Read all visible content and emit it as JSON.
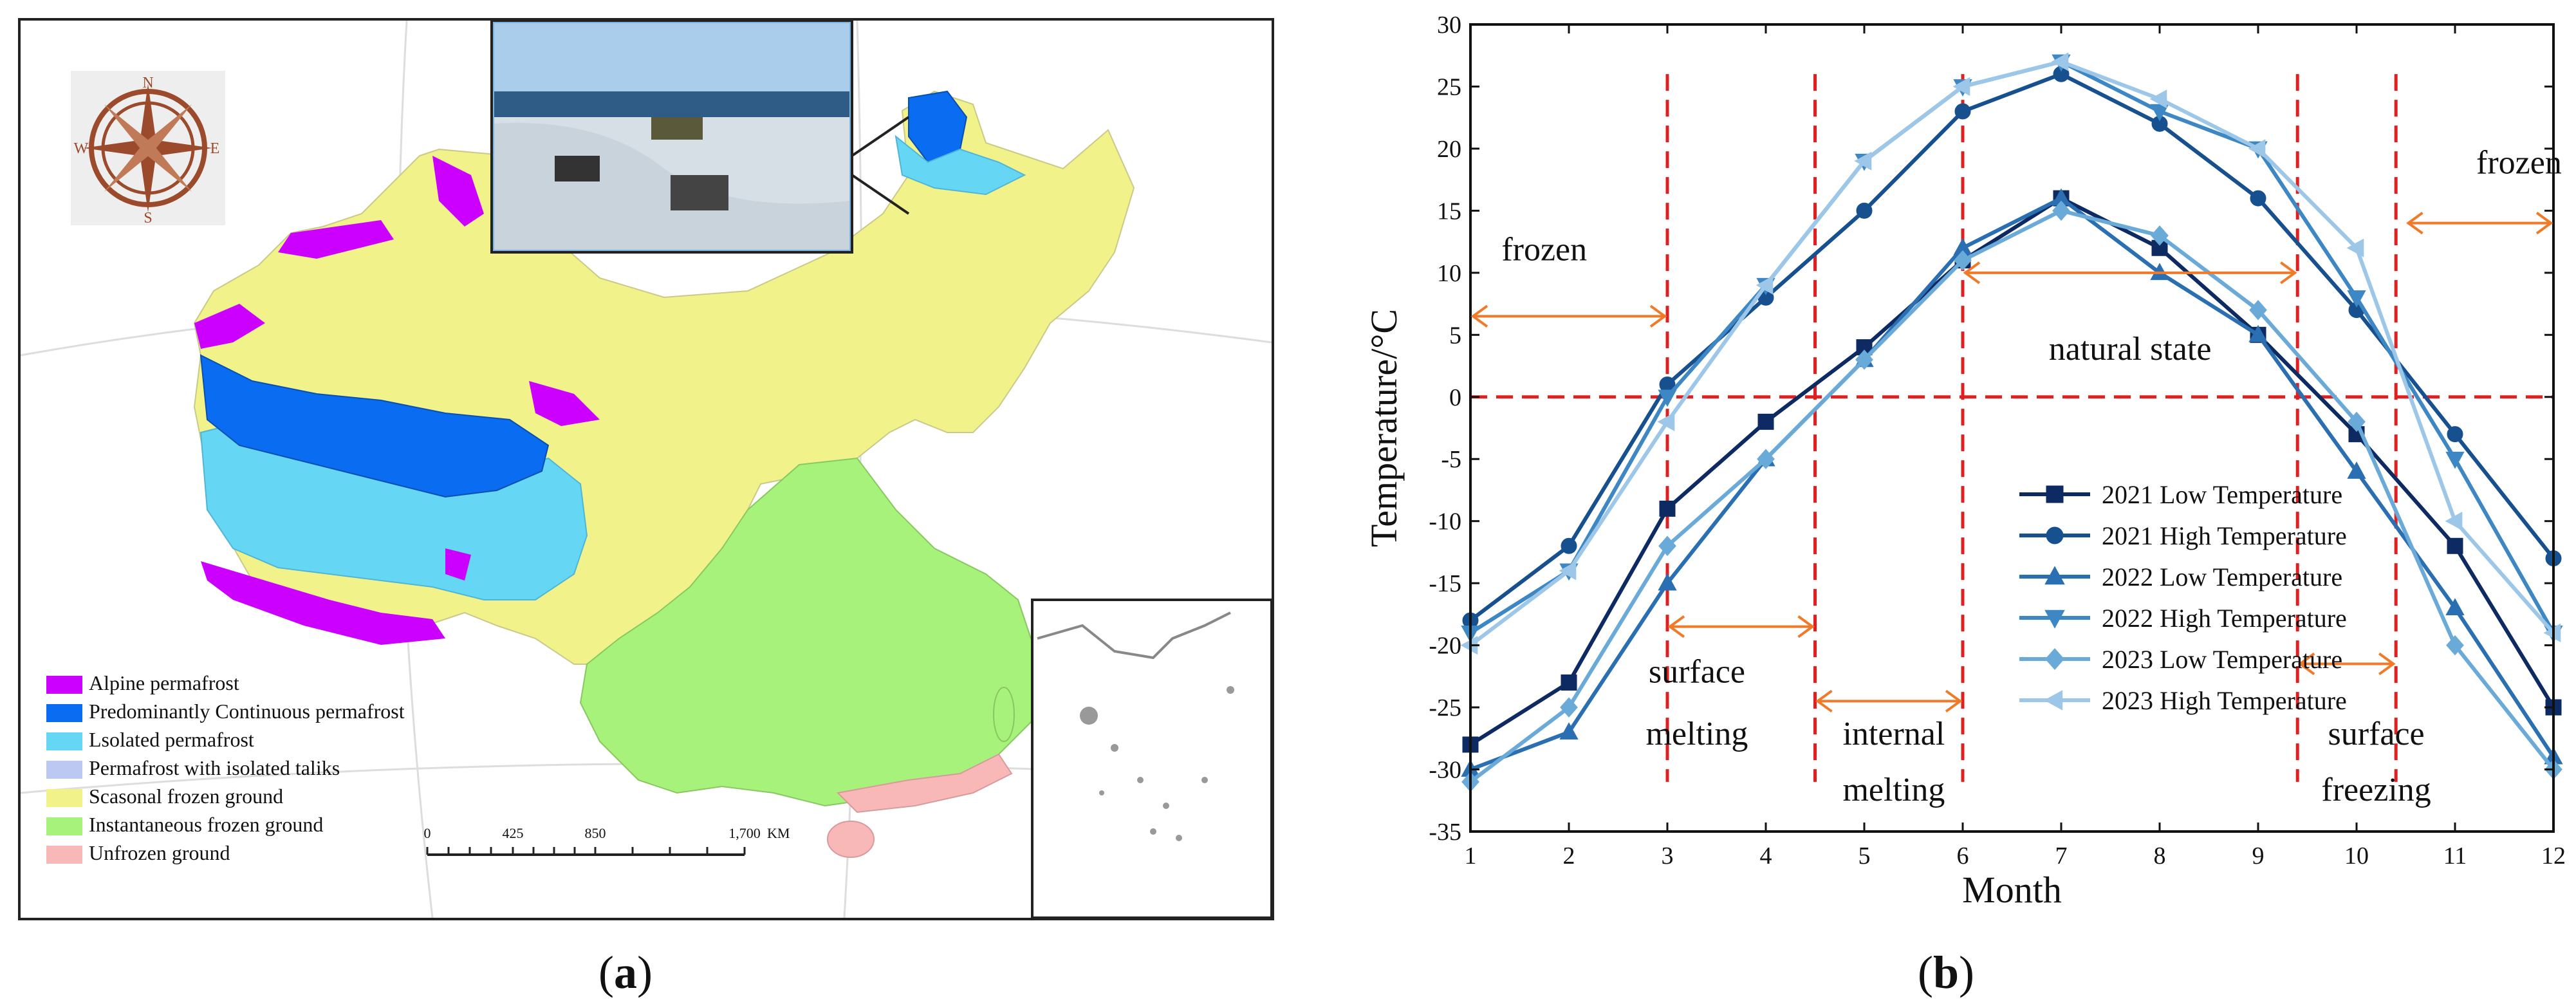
{
  "panel_a": {
    "caption_label": "a",
    "compass": {
      "N": "N",
      "S": "S",
      "E": "E",
      "W": "W"
    },
    "legend": [
      {
        "label": "Alpine permafrost",
        "color": "#cc00ff"
      },
      {
        "label": "Predominantly Continuous permafrost",
        "color": "#0a6cf0"
      },
      {
        "label": "Lsolated permafrost",
        "color": "#66d6f5"
      },
      {
        "label": "Permafrost with isolated taliks",
        "color": "#bcc8f2"
      },
      {
        "label": "Scasonal frozen ground",
        "color": "#f2f28a"
      },
      {
        "label": "Instantaneous frozen ground",
        "color": "#a6f27a"
      },
      {
        "label": "Unfrozen ground",
        "color": "#f8b8b8"
      }
    ],
    "scale_bar": {
      "ticks": [
        "0",
        "425",
        "850",
        "1,700"
      ],
      "unit": "KM"
    }
  },
  "panel_b": {
    "caption_label": "b",
    "chart_data": {
      "type": "line",
      "title": "",
      "xlabel": "Month",
      "ylabel": "Temperature/°C",
      "x": [
        1,
        2,
        3,
        4,
        5,
        6,
        7,
        8,
        9,
        10,
        11,
        12
      ],
      "xlim": [
        1,
        12
      ],
      "ylim": [
        -35,
        30
      ],
      "yticks": [
        -35,
        -30,
        -25,
        -20,
        -15,
        -10,
        -5,
        0,
        5,
        10,
        15,
        20,
        25,
        30
      ],
      "grid": false,
      "legend_position": "center",
      "series": [
        {
          "name": "2021 Low Temperature",
          "marker": "square",
          "color": "#0d2a63",
          "values": [
            -28,
            -23,
            -9,
            -2,
            4,
            11,
            16,
            12,
            5,
            -3,
            -12,
            -25
          ]
        },
        {
          "name": "2021 High Temperature",
          "marker": "circle",
          "color": "#16508f",
          "values": [
            -18,
            -12,
            1,
            8,
            15,
            23,
            26,
            22,
            16,
            7,
            -3,
            -13
          ]
        },
        {
          "name": "2022 Low Temperature",
          "marker": "triangle-up",
          "color": "#2a6fb1",
          "values": [
            -30,
            -27,
            -15,
            -5,
            3,
            12,
            16,
            10,
            5,
            -6,
            -17,
            -29
          ]
        },
        {
          "name": "2022 High Temperature",
          "marker": "triangle-down",
          "color": "#3d88c4",
          "values": [
            -19,
            -14,
            0,
            9,
            19,
            25,
            27,
            23,
            20,
            8,
            -5,
            -19
          ]
        },
        {
          "name": "2023 Low Temperature",
          "marker": "diamond",
          "color": "#6aaad8",
          "values": [
            -31,
            -25,
            -12,
            -5,
            3,
            11,
            15,
            13,
            7,
            -2,
            -20,
            -30
          ]
        },
        {
          "name": "2023 High Temperature",
          "marker": "triangle-left",
          "color": "#9cc7e8",
          "values": [
            -20,
            -14,
            -2,
            9,
            19,
            25,
            27,
            24,
            20,
            12,
            -10,
            -19
          ]
        }
      ],
      "reference_lines": {
        "horizontal_y": [
          0
        ],
        "vertical_x": [
          3,
          4.5,
          6,
          9.4,
          10.4
        ]
      },
      "annotations": [
        {
          "text": "frozen",
          "x": 1.75,
          "y": 11
        },
        {
          "text": "frozen",
          "x": 11.65,
          "y": 18
        },
        {
          "text": "natural state",
          "x": 7.7,
          "y": 3
        },
        {
          "text": "surface",
          "x": 3.3,
          "y": -23
        },
        {
          "text": "melting",
          "x": 3.3,
          "y": -28
        },
        {
          "text": "internal",
          "x": 5.3,
          "y": -28
        },
        {
          "text": "melting",
          "x": 5.3,
          "y": -32.5
        },
        {
          "text": "surface",
          "x": 10.2,
          "y": -28
        },
        {
          "text": "freezing",
          "x": 10.2,
          "y": -32.5
        }
      ],
      "range_arrows": [
        {
          "from": 1,
          "to": 3,
          "y": 6.5
        },
        {
          "from": 10.5,
          "to": 12,
          "y": 14
        },
        {
          "from": 6,
          "to": 9.4,
          "y": 10
        },
        {
          "from": 3,
          "to": 4.5,
          "y": -18.5
        },
        {
          "from": 4.5,
          "to": 6,
          "y": -24.5
        },
        {
          "from": 9.4,
          "to": 10.4,
          "y": -21.5
        }
      ]
    }
  }
}
